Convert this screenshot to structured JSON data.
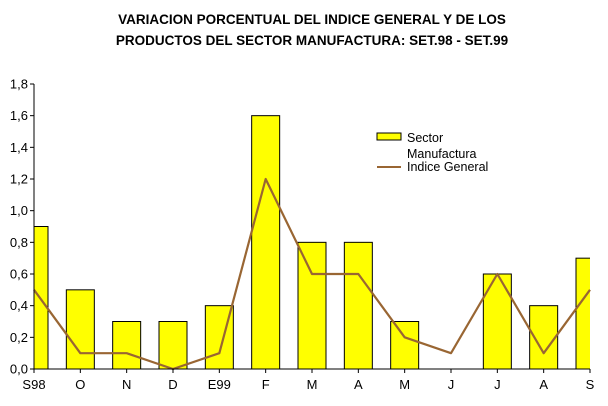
{
  "chart_data": {
    "type": "bar",
    "title_lines": [
      "VARIACION PORCENTUAL DEL INDICE GENERAL Y DE LOS",
      "PRODUCTOS DEL SECTOR MANUFACTURA: SET.98 - SET.99"
    ],
    "categories": [
      "S98",
      "O",
      "N",
      "D",
      "E99",
      "F",
      "M",
      "A",
      "M",
      "J",
      "J",
      "A",
      "S"
    ],
    "y_tick_labels": [
      "0,0",
      "0,2",
      "0,4",
      "0,6",
      "0,8",
      "1,0",
      "1,2",
      "1,4",
      "1,6",
      "1,8"
    ],
    "ylim": [
      0,
      1.8
    ],
    "grid": false,
    "legend_position": "right",
    "series": [
      {
        "name": "Sector Manufactura",
        "legend_lines": [
          "Sector",
          "Manufactura"
        ],
        "kind": "bar",
        "color": "#FFFF00",
        "values": [
          0.9,
          0.5,
          0.3,
          0.3,
          0.4,
          1.6,
          0.8,
          0.8,
          0.3,
          0.0,
          0.6,
          0.4,
          0.7
        ]
      },
      {
        "name": "Indice General",
        "legend_lines": [
          "Indice General"
        ],
        "kind": "line",
        "color": "#996633",
        "values": [
          0.5,
          0.1,
          0.1,
          0.0,
          0.1,
          1.2,
          0.6,
          0.6,
          0.2,
          0.1,
          0.6,
          0.1,
          0.5
        ]
      }
    ]
  }
}
